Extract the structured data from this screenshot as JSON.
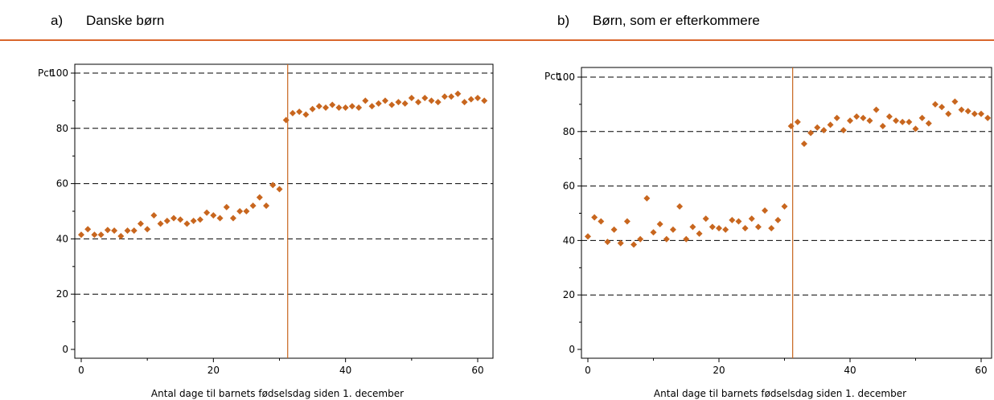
{
  "colors": {
    "marker": "#c8661e",
    "cutoff": "#c8661e",
    "rule": "#d9662c",
    "grid": "#000000"
  },
  "chart_data": [
    {
      "type": "scatter",
      "panel_letter": "a)",
      "title": "Danske børn",
      "xlabel": "Antal dage til barnets fødselsdag siden 1. december",
      "ylabel": "Pct.",
      "xlim": [
        -1,
        62
      ],
      "ylim": [
        -2,
        103
      ],
      "xticks": [
        0,
        20,
        40,
        60
      ],
      "yticks": [
        0,
        20,
        40,
        60,
        80,
        100
      ],
      "grid": "horizontal dashed at 20, 40, 60, 80, 100",
      "cutoff_x": 31,
      "x": [
        0,
        1,
        2,
        3,
        4,
        5,
        6,
        7,
        8,
        9,
        10,
        11,
        12,
        13,
        14,
        15,
        16,
        17,
        18,
        19,
        20,
        21,
        22,
        23,
        24,
        25,
        26,
        27,
        28,
        29,
        30,
        31,
        32,
        33,
        34,
        35,
        36,
        37,
        38,
        39,
        40,
        41,
        42,
        43,
        44,
        45,
        46,
        47,
        48,
        49,
        50,
        51,
        52,
        53,
        54,
        55,
        56,
        57,
        58,
        59,
        60,
        61
      ],
      "y": [
        41.5,
        43.5,
        41.5,
        41.5,
        43.2,
        43,
        41,
        43,
        43,
        45.5,
        43.5,
        48.5,
        45.5,
        46.5,
        47.5,
        47,
        45.5,
        46.5,
        47,
        49.5,
        48.5,
        47.5,
        51.5,
        47.5,
        50,
        50,
        52,
        55,
        52,
        59.5,
        58,
        83,
        85.5,
        86,
        85,
        87,
        88,
        87.5,
        88.5,
        87.5,
        87.5,
        88,
        87.5,
        90,
        88,
        89,
        90,
        88.5,
        89.5,
        89,
        91,
        89.5,
        91,
        90,
        89.5,
        91.5,
        91.5,
        92.5,
        89.5,
        90.5,
        91,
        90
      ]
    },
    {
      "type": "scatter",
      "panel_letter": "b)",
      "title": "Børn, som er efterkommere",
      "xlabel": "Antal dage til barnets fødselsdag siden 1. december",
      "ylabel": "Pct.",
      "xlim": [
        -1,
        62
      ],
      "ylim": [
        -2,
        103
      ],
      "xticks": [
        0,
        20,
        40,
        60
      ],
      "yticks": [
        0,
        20,
        40,
        60,
        80,
        100
      ],
      "grid": "horizontal dashed at 20, 40, 60, 80, 100",
      "cutoff_x": 31,
      "x": [
        0,
        1,
        2,
        3,
        4,
        5,
        6,
        7,
        8,
        9,
        10,
        11,
        12,
        13,
        14,
        15,
        16,
        17,
        18,
        19,
        20,
        21,
        22,
        23,
        24,
        25,
        26,
        27,
        28,
        29,
        30,
        31,
        32,
        33,
        34,
        35,
        36,
        37,
        38,
        39,
        40,
        41,
        42,
        43,
        44,
        45,
        46,
        47,
        48,
        49,
        50,
        51,
        52,
        53,
        54,
        55,
        56,
        57,
        58,
        59,
        60,
        61
      ],
      "y": [
        41.5,
        48.5,
        47,
        39.5,
        44,
        39,
        47,
        38.5,
        40.5,
        55.5,
        43,
        46,
        40.5,
        44,
        52.5,
        40.5,
        45,
        42.5,
        48,
        45,
        44.5,
        44,
        47.5,
        47,
        44.5,
        48,
        45,
        51,
        44.5,
        47.5,
        52.5,
        82,
        83.5,
        75.5,
        79.5,
        81.5,
        80.5,
        82.5,
        85,
        80.5,
        84,
        85.5,
        85,
        84,
        88,
        82,
        85.5,
        84,
        83.5,
        83.5,
        81,
        85,
        83,
        90,
        89,
        86.5,
        91,
        88,
        87.5,
        86.5,
        86.5,
        85
      ]
    }
  ]
}
